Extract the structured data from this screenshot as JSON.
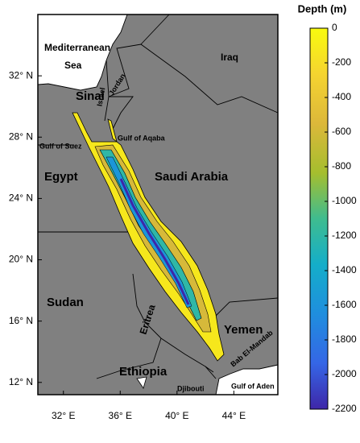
{
  "map": {
    "lonlim": [
      30.2,
      47.1
    ],
    "latlim": [
      11.2,
      36
    ],
    "lon_ticks": [
      {
        "value": 32,
        "label": "32° E"
      },
      {
        "value": 36,
        "label": "36° E"
      },
      {
        "value": 40,
        "label": "40° E"
      },
      {
        "value": 44,
        "label": "44° E"
      }
    ],
    "lat_ticks": [
      {
        "value": 32,
        "label": "32° N"
      },
      {
        "value": 28,
        "label": "28° N"
      },
      {
        "value": 24,
        "label": "24° N"
      },
      {
        "value": 20,
        "label": "20° N"
      },
      {
        "value": 16,
        "label": "16° N"
      },
      {
        "value": 12,
        "label": "12° N"
      }
    ],
    "colorbar": {
      "title": "Depth (m)",
      "clim": [
        -2200,
        0
      ],
      "ticks": [
        0,
        -200,
        -400,
        -600,
        -800,
        -1000,
        -1200,
        -1400,
        -1600,
        -1800,
        -2000,
        -2200
      ]
    },
    "labels": [
      "Mediterranean",
      "Sea",
      "Iraq",
      "Sinai",
      "Israel",
      "Jordan",
      "Gulf of Aqaba",
      "Gulf of Suez",
      "Egypt",
      "Saudi Arabia",
      "Sudan",
      "Eritrea",
      "Yemen",
      "Bab El-Mandab",
      "Ethiopia",
      "Djibouti",
      "Gulf of Aden"
    ]
  }
}
